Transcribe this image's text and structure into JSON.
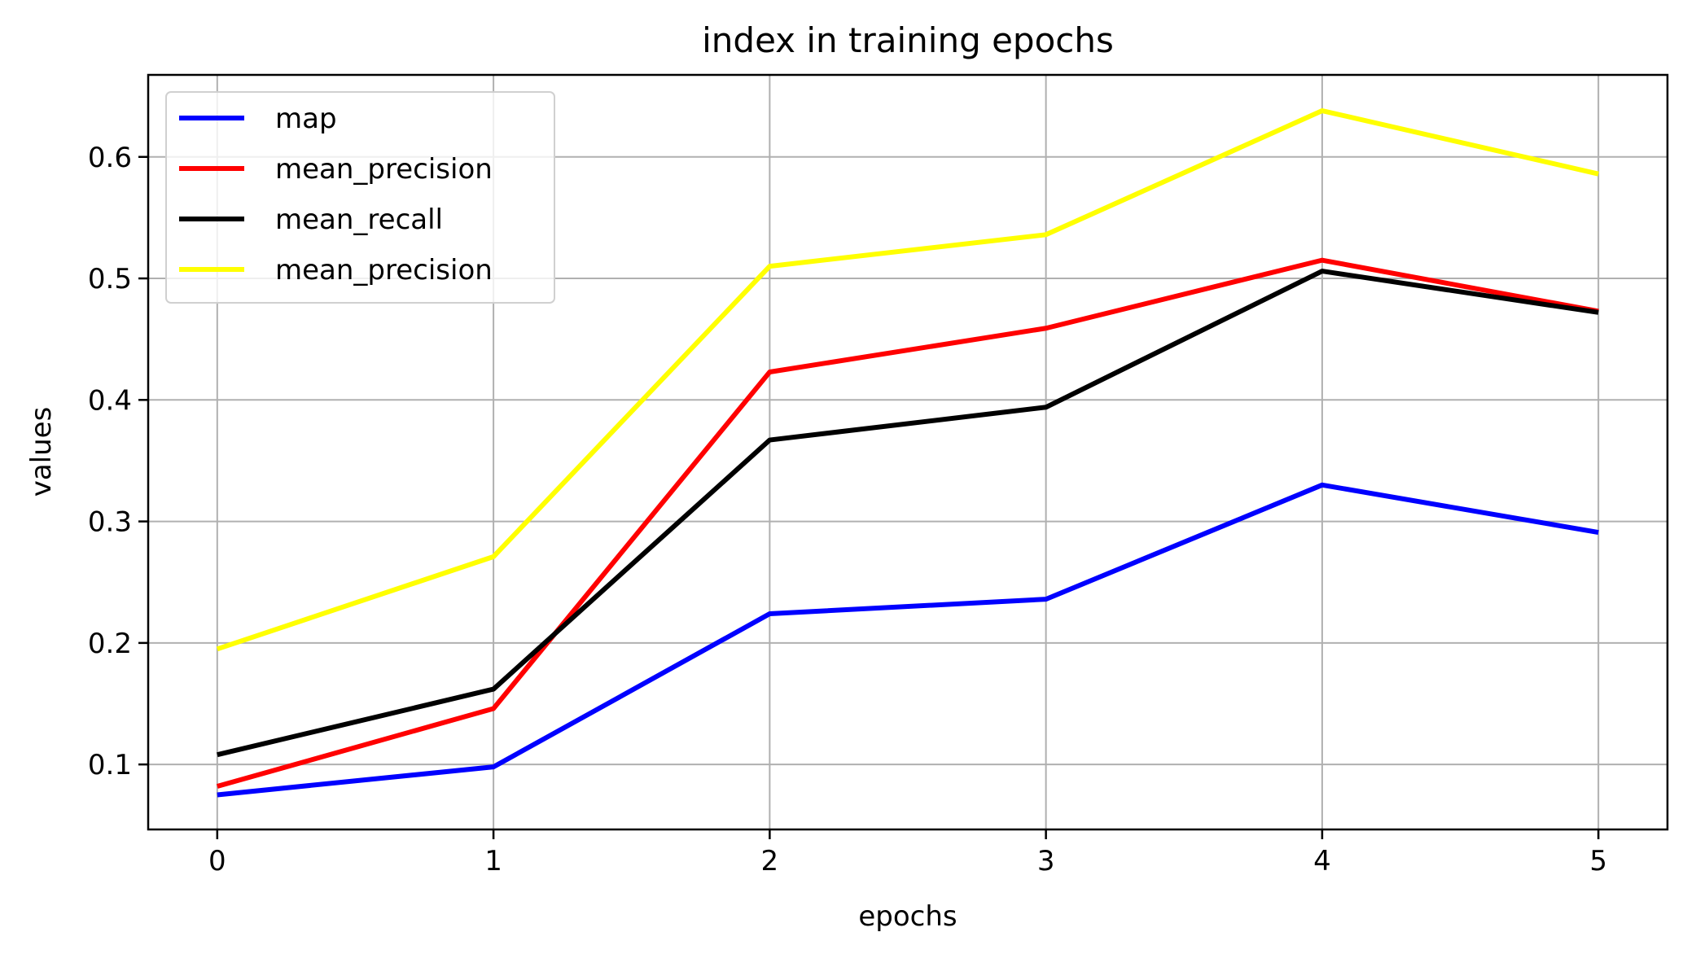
{
  "chart_data": {
    "type": "line",
    "title": "index in training epochs",
    "xlabel": "epochs",
    "ylabel": "values",
    "x": [
      0,
      1,
      2,
      3,
      4,
      5
    ],
    "xlim": [
      -0.25,
      5.25
    ],
    "ylim": [
      0.0465,
      0.6675
    ],
    "xticks": [
      "0",
      "1",
      "2",
      "3",
      "4",
      "5"
    ],
    "yticks": [
      "0.1",
      "0.2",
      "0.3",
      "0.4",
      "0.5",
      "0.6"
    ],
    "ytick_values": [
      0.1,
      0.2,
      0.3,
      0.4,
      0.5,
      0.6
    ],
    "grid": true,
    "legend_position": "upper-left",
    "series": [
      {
        "name": "map",
        "color": "#0000ff",
        "values": [
          0.075,
          0.098,
          0.224,
          0.236,
          0.33,
          0.291
        ]
      },
      {
        "name": "mean_precision",
        "color": "#ff0000",
        "values": [
          0.082,
          0.146,
          0.423,
          0.459,
          0.515,
          0.473
        ]
      },
      {
        "name": "mean_recall",
        "color": "#000000",
        "values": [
          0.108,
          0.162,
          0.367,
          0.394,
          0.506,
          0.472
        ]
      },
      {
        "name": "mean_precision",
        "color": "#ffff00",
        "values": [
          0.195,
          0.271,
          0.51,
          0.536,
          0.638,
          0.586
        ]
      }
    ]
  }
}
